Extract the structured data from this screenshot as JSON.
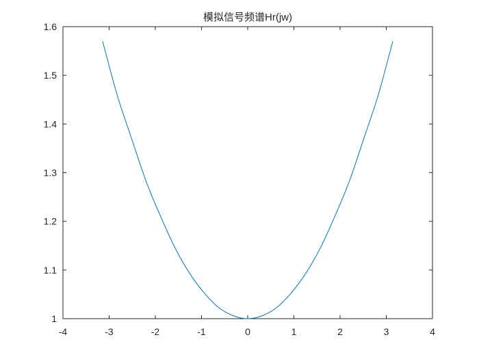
{
  "chart_data": {
    "type": "line",
    "title": "模拟信号频谱Hr(jw)",
    "xlabel": "",
    "ylabel": "",
    "xlim": [
      -4,
      4
    ],
    "ylim": [
      1,
      1.6
    ],
    "xticks": [
      -4,
      -3,
      -2,
      -1,
      0,
      1,
      2,
      3,
      4
    ],
    "xtick_labels": [
      "-4",
      "-3",
      "-2",
      "-1",
      "0",
      "1",
      "2",
      "3",
      "4"
    ],
    "yticks": [
      1,
      1.1,
      1.2,
      1.3,
      1.4,
      1.5,
      1.6
    ],
    "ytick_labels": [
      "1",
      "1.1",
      "1.2",
      "1.3",
      "1.4",
      "1.5",
      "1.6"
    ],
    "grid": false,
    "series": [
      {
        "color": "#0072BD",
        "x": [
          -3.1416,
          -2.8274,
          -2.5133,
          -2.1991,
          -1.885,
          -1.5708,
          -1.2566,
          -0.9425,
          -0.6283,
          -0.3142,
          0,
          0.3142,
          0.6283,
          0.9425,
          1.2566,
          1.5708,
          1.885,
          2.1991,
          2.5133,
          2.8274,
          3.1416
        ],
        "y": [
          1.57,
          1.46,
          1.37,
          1.282,
          1.21,
          1.145,
          1.093,
          1.053,
          1.023,
          1.006,
          1.0,
          1.006,
          1.023,
          1.053,
          1.093,
          1.145,
          1.21,
          1.282,
          1.37,
          1.46,
          1.57
        ]
      }
    ]
  }
}
